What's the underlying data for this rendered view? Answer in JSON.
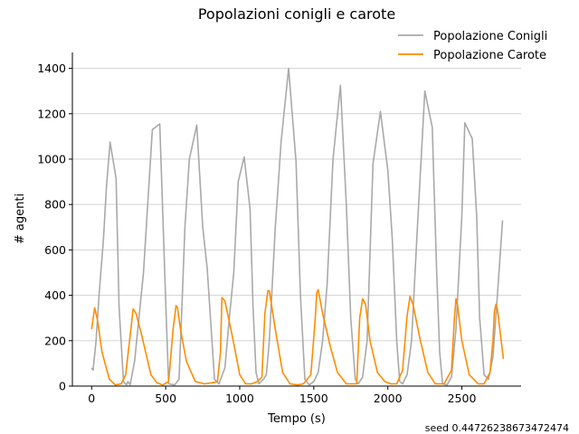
{
  "chart_data": {
    "type": "line",
    "title": "Popolazioni conigli e carote",
    "xlabel": "Tempo (s)",
    "ylabel": "# agenti",
    "xlim": [
      -130,
      2900
    ],
    "ylim": [
      0,
      1470
    ],
    "xticks": [
      0,
      500,
      1000,
      1500,
      2000,
      2500
    ],
    "yticks": [
      0,
      200,
      400,
      600,
      800,
      1000,
      1200,
      1400
    ],
    "grid": "y",
    "legend_position": "top-right",
    "footnote": "seed 0.44726238673472474",
    "series": [
      {
        "name": "Popolazione Conigli",
        "color": "#a9a9a9",
        "points": [
          [
            0,
            80
          ],
          [
            10,
            70
          ],
          [
            30,
            200
          ],
          [
            50,
            400
          ],
          [
            80,
            650
          ],
          [
            100,
            880
          ],
          [
            125,
            1075
          ],
          [
            165,
            915
          ],
          [
            185,
            350
          ],
          [
            215,
            20
          ],
          [
            235,
            5
          ],
          [
            245,
            20
          ],
          [
            260,
            5
          ],
          [
            290,
            110
          ],
          [
            350,
            500
          ],
          [
            410,
            1130
          ],
          [
            460,
            1155
          ],
          [
            500,
            380
          ],
          [
            520,
            10
          ],
          [
            560,
            5
          ],
          [
            590,
            30
          ],
          [
            610,
            350
          ],
          [
            630,
            700
          ],
          [
            660,
            1000
          ],
          [
            710,
            1150
          ],
          [
            750,
            700
          ],
          [
            780,
            520
          ],
          [
            830,
            30
          ],
          [
            860,
            10
          ],
          [
            900,
            80
          ],
          [
            930,
            300
          ],
          [
            960,
            500
          ],
          [
            990,
            900
          ],
          [
            1030,
            1010
          ],
          [
            1070,
            780
          ],
          [
            1090,
            350
          ],
          [
            1110,
            60
          ],
          [
            1130,
            10
          ],
          [
            1160,
            30
          ],
          [
            1180,
            50
          ],
          [
            1200,
            200
          ],
          [
            1240,
            700
          ],
          [
            1280,
            1080
          ],
          [
            1330,
            1400
          ],
          [
            1380,
            990
          ],
          [
            1410,
            400
          ],
          [
            1440,
            30
          ],
          [
            1470,
            5
          ],
          [
            1500,
            20
          ],
          [
            1530,
            60
          ],
          [
            1560,
            200
          ],
          [
            1590,
            450
          ],
          [
            1630,
            1000
          ],
          [
            1680,
            1325
          ],
          [
            1720,
            800
          ],
          [
            1750,
            300
          ],
          [
            1780,
            30
          ],
          [
            1800,
            10
          ],
          [
            1830,
            40
          ],
          [
            1860,
            200
          ],
          [
            1900,
            980
          ],
          [
            1950,
            1210
          ],
          [
            2000,
            950
          ],
          [
            2030,
            650
          ],
          [
            2060,
            200
          ],
          [
            2080,
            20
          ],
          [
            2100,
            10
          ],
          [
            2130,
            50
          ],
          [
            2160,
            200
          ],
          [
            2200,
            700
          ],
          [
            2250,
            1300
          ],
          [
            2300,
            1140
          ],
          [
            2330,
            500
          ],
          [
            2350,
            150
          ],
          [
            2370,
            10
          ],
          [
            2400,
            5
          ],
          [
            2430,
            40
          ],
          [
            2460,
            250
          ],
          [
            2500,
            750
          ],
          [
            2520,
            1160
          ],
          [
            2570,
            1090
          ],
          [
            2600,
            750
          ],
          [
            2620,
            300
          ],
          [
            2650,
            50
          ],
          [
            2680,
            30
          ],
          [
            2710,
            130
          ],
          [
            2740,
            400
          ],
          [
            2775,
            730
          ]
        ]
      },
      {
        "name": "Popolazione Carote",
        "color": "#ff8c00",
        "points": [
          [
            0,
            250
          ],
          [
            20,
            345
          ],
          [
            40,
            290
          ],
          [
            70,
            150
          ],
          [
            120,
            30
          ],
          [
            160,
            5
          ],
          [
            200,
            10
          ],
          [
            230,
            50
          ],
          [
            270,
            280
          ],
          [
            280,
            340
          ],
          [
            300,
            320
          ],
          [
            340,
            220
          ],
          [
            400,
            50
          ],
          [
            440,
            15
          ],
          [
            480,
            5
          ],
          [
            520,
            20
          ],
          [
            550,
            250
          ],
          [
            570,
            355
          ],
          [
            580,
            345
          ],
          [
            600,
            250
          ],
          [
            640,
            110
          ],
          [
            700,
            20
          ],
          [
            760,
            10
          ],
          [
            820,
            15
          ],
          [
            850,
            20
          ],
          [
            870,
            150
          ],
          [
            880,
            390
          ],
          [
            900,
            375
          ],
          [
            950,
            220
          ],
          [
            1000,
            50
          ],
          [
            1040,
            10
          ],
          [
            1080,
            10
          ],
          [
            1120,
            20
          ],
          [
            1150,
            40
          ],
          [
            1170,
            320
          ],
          [
            1190,
            420
          ],
          [
            1200,
            420
          ],
          [
            1240,
            250
          ],
          [
            1290,
            60
          ],
          [
            1340,
            10
          ],
          [
            1390,
            5
          ],
          [
            1430,
            10
          ],
          [
            1480,
            50
          ],
          [
            1510,
            300
          ],
          [
            1520,
            410
          ],
          [
            1530,
            425
          ],
          [
            1560,
            320
          ],
          [
            1610,
            180
          ],
          [
            1660,
            60
          ],
          [
            1720,
            10
          ],
          [
            1790,
            10
          ],
          [
            1810,
            300
          ],
          [
            1830,
            385
          ],
          [
            1850,
            360
          ],
          [
            1880,
            200
          ],
          [
            1930,
            60
          ],
          [
            1980,
            20
          ],
          [
            2020,
            10
          ],
          [
            2060,
            10
          ],
          [
            2100,
            70
          ],
          [
            2130,
            310
          ],
          [
            2150,
            395
          ],
          [
            2170,
            360
          ],
          [
            2220,
            200
          ],
          [
            2270,
            60
          ],
          [
            2320,
            10
          ],
          [
            2380,
            10
          ],
          [
            2430,
            70
          ],
          [
            2450,
            300
          ],
          [
            2460,
            385
          ],
          [
            2470,
            360
          ],
          [
            2500,
            200
          ],
          [
            2550,
            50
          ],
          [
            2610,
            10
          ],
          [
            2650,
            10
          ],
          [
            2690,
            60
          ],
          [
            2710,
            200
          ],
          [
            2720,
            330
          ],
          [
            2730,
            360
          ],
          [
            2740,
            340
          ],
          [
            2780,
            120
          ]
        ]
      }
    ]
  }
}
